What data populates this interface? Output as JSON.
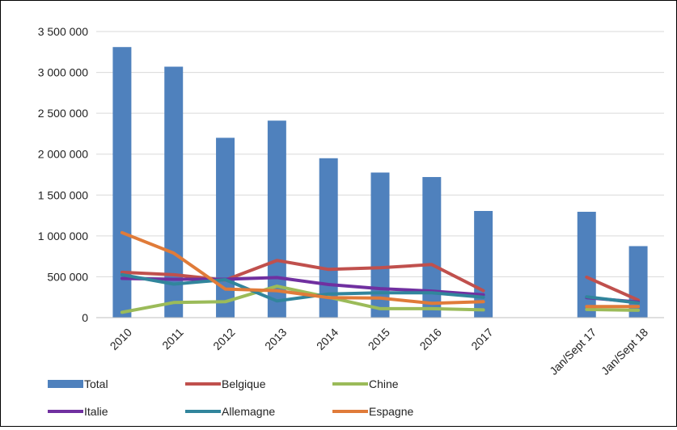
{
  "chart_data": {
    "type": "bar",
    "categories": [
      "2010",
      "2011",
      "2012",
      "2013",
      "2014",
      "2015",
      "2016",
      "2017",
      "",
      "Jan/Sept 17",
      "Jan/Sept 18"
    ],
    "yticks": [
      "0",
      "500 000",
      "1 000 000",
      "1 500 000",
      "2 000 000",
      "2 500 000",
      "3 000 000",
      "3 500 000"
    ],
    "ylim": [
      0,
      3500000
    ],
    "grid": "horizontal",
    "legend_position": "bottom",
    "bar_series": {
      "name": "Total",
      "color": "#4f81bd",
      "values": [
        3310000,
        3070000,
        2200000,
        2410000,
        1950000,
        1775000,
        1720000,
        1305000,
        null,
        1295000,
        875000
      ]
    },
    "line_series": [
      {
        "name": "Belgique",
        "color": "#c0504d",
        "values": [
          555000,
          525000,
          460000,
          700000,
          590000,
          610000,
          650000,
          330000,
          null,
          495000,
          215000
        ]
      },
      {
        "name": "Chine",
        "color": "#9bbb59",
        "values": [
          65000,
          185000,
          195000,
          385000,
          250000,
          110000,
          110000,
          95000,
          null,
          100000,
          90000
        ]
      },
      {
        "name": "Italie",
        "color": "#7030a0",
        "values": [
          480000,
          470000,
          470000,
          490000,
          405000,
          355000,
          325000,
          280000,
          null,
          245000,
          190000
        ]
      },
      {
        "name": "Allemagne",
        "color": "#31859c",
        "values": [
          525000,
          410000,
          465000,
          205000,
          290000,
          305000,
          305000,
          250000,
          null,
          255000,
          180000
        ]
      },
      {
        "name": "Espagne",
        "color": "#e07b39",
        "values": [
          1040000,
          790000,
          350000,
          330000,
          245000,
          240000,
          175000,
          195000,
          null,
          135000,
          135000
        ]
      }
    ],
    "legend": [
      {
        "name": "Total",
        "color": "#4f81bd",
        "kind": "bar"
      },
      {
        "name": "Belgique",
        "color": "#c0504d",
        "kind": "line"
      },
      {
        "name": "Chine",
        "color": "#9bbb59",
        "kind": "line"
      },
      {
        "name": "Italie",
        "color": "#7030a0",
        "kind": "line"
      },
      {
        "name": "Allemagne",
        "color": "#31859c",
        "kind": "line"
      },
      {
        "name": "Espagne",
        "color": "#e07b39",
        "kind": "line"
      }
    ]
  }
}
